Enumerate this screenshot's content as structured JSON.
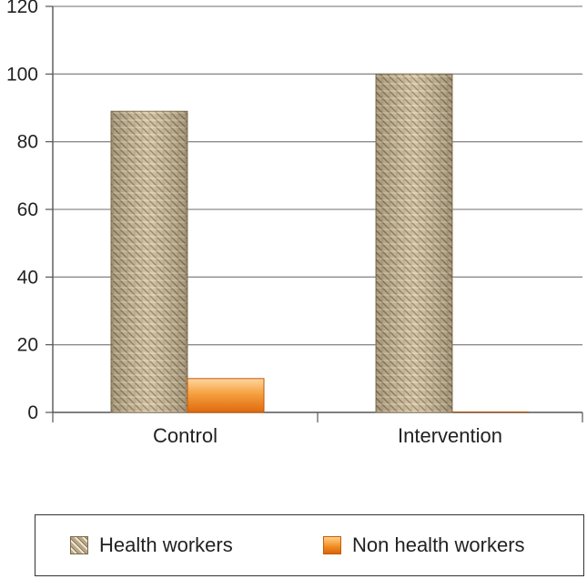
{
  "chart_data": {
    "type": "bar",
    "title": "",
    "xlabel": "",
    "ylabel": "",
    "ylim": [
      0,
      120
    ],
    "yticks": [
      0,
      20,
      40,
      60,
      80,
      100,
      120
    ],
    "grid": true,
    "legend_position": "bottom",
    "categories": [
      "Control",
      "Intervention"
    ],
    "series": [
      {
        "name": "Health workers",
        "values": [
          89,
          100
        ],
        "color": "#c9b48e"
      },
      {
        "name": "Non health workers",
        "values": [
          10,
          0
        ],
        "color": "#f28a1e"
      }
    ]
  }
}
